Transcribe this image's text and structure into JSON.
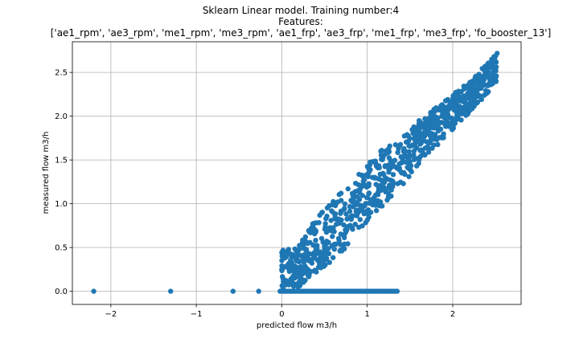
{
  "chart_data": {
    "type": "scatter",
    "title_lines": [
      "Sklearn Linear model. Training number:4",
      "Features:",
      "['ae1_rpm', 'ae3_rpm', 'me1_rpm', 'me3_rpm', 'ae1_frp', 'ae3_frp', 'me1_frp', 'me3_frp', 'fo_booster_13']"
    ],
    "xlabel": "predicted flow m3/h",
    "ylabel": "measured flow m3/h",
    "xlim": [
      -2.45,
      2.8
    ],
    "ylim": [
      -0.15,
      2.85
    ],
    "x_ticks": [
      {
        "value": -2,
        "label": "−2"
      },
      {
        "value": -1,
        "label": "−1"
      },
      {
        "value": 0,
        "label": "0"
      },
      {
        "value": 1,
        "label": "1"
      },
      {
        "value": 2,
        "label": "2"
      }
    ],
    "y_ticks": [
      {
        "value": 0.0,
        "label": "0.0"
      },
      {
        "value": 0.5,
        "label": "0.5"
      },
      {
        "value": 1.0,
        "label": "1.0"
      },
      {
        "value": 1.5,
        "label": "1.5"
      },
      {
        "value": 2.0,
        "label": "2.0"
      },
      {
        "value": 2.5,
        "label": "2.5"
      }
    ],
    "grid": true,
    "marker_color": "#1f77b4",
    "outliers": [
      {
        "x": -2.2,
        "y": 0.0
      },
      {
        "x": -1.3,
        "y": 0.0
      },
      {
        "x": -0.57,
        "y": 0.0
      },
      {
        "x": -0.27,
        "y": 0.0
      }
    ],
    "zero_row": {
      "x_start": -0.02,
      "x_end": 1.35,
      "y": 0.0
    },
    "main_band": [
      {
        "x": 0.0,
        "y_low": 0.0,
        "y_high": 0.48
      },
      {
        "x": 0.2,
        "y_low": 0.05,
        "y_high": 0.55
      },
      {
        "x": 0.4,
        "y_low": 0.2,
        "y_high": 0.85
      },
      {
        "x": 0.6,
        "y_low": 0.35,
        "y_high": 1.05
      },
      {
        "x": 0.8,
        "y_low": 0.55,
        "y_high": 1.25
      },
      {
        "x": 1.0,
        "y_low": 0.8,
        "y_high": 1.45
      },
      {
        "x": 1.2,
        "y_low": 1.0,
        "y_high": 1.65
      },
      {
        "x": 1.4,
        "y_low": 1.2,
        "y_high": 1.75
      },
      {
        "x": 1.6,
        "y_low": 1.45,
        "y_high": 1.95
      },
      {
        "x": 1.8,
        "y_low": 1.65,
        "y_high": 2.1
      },
      {
        "x": 2.0,
        "y_low": 1.85,
        "y_high": 2.25
      },
      {
        "x": 2.2,
        "y_low": 2.05,
        "y_high": 2.4
      },
      {
        "x": 2.4,
        "y_low": 2.25,
        "y_high": 2.6
      },
      {
        "x": 2.52,
        "y_low": 2.4,
        "y_high": 2.72
      }
    ]
  }
}
